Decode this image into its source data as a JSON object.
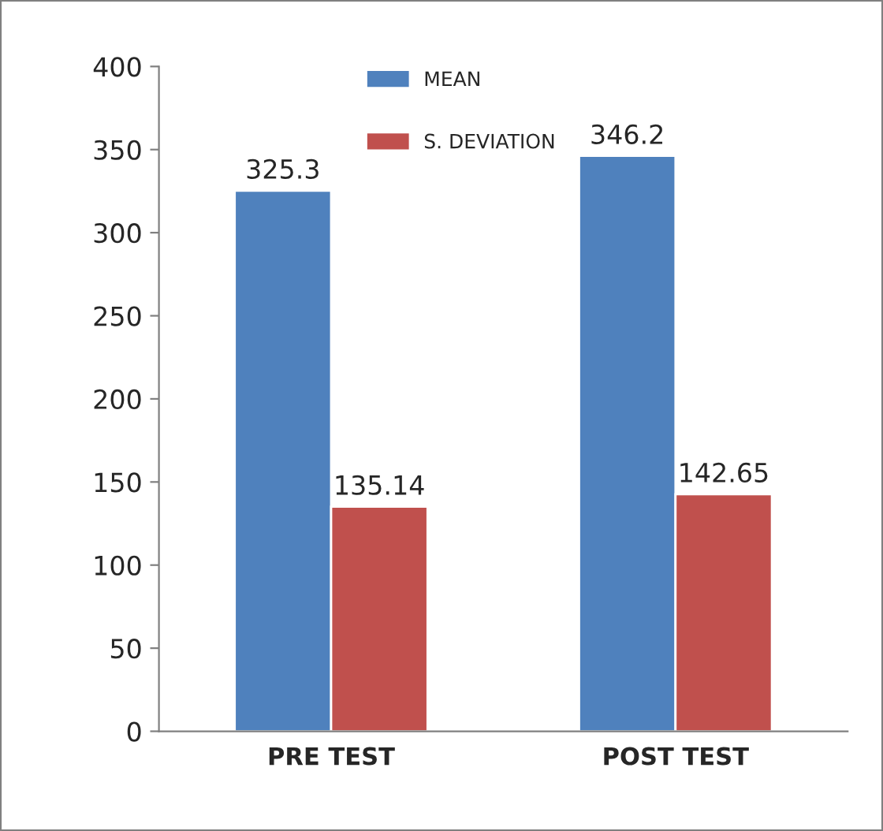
{
  "chart_data": {
    "type": "bar",
    "categories": [
      "PRE TEST",
      "POST TEST"
    ],
    "series": [
      {
        "name": "MEAN",
        "color": "#4f81bd",
        "values": [
          325.3,
          346.2
        ]
      },
      {
        "name": "S. DEVIATION",
        "color": "#c0504d",
        "values": [
          135.14,
          142.65
        ]
      }
    ],
    "ylim": [
      0,
      400
    ],
    "yticks": [
      0,
      50,
      100,
      150,
      200,
      250,
      300,
      350,
      400
    ],
    "data_labels": true,
    "grid": false,
    "legend": "top"
  }
}
